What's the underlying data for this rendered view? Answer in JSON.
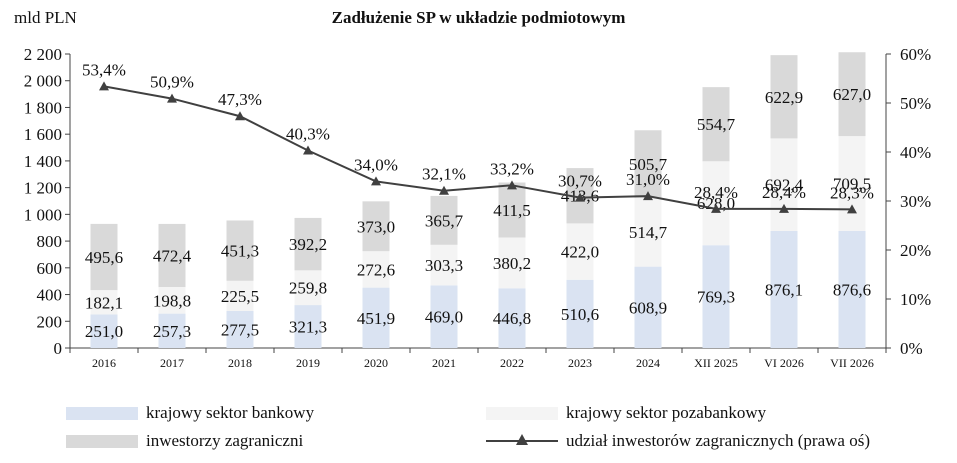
{
  "chart_data": {
    "type": "bar",
    "title": "Zadłużenie SP w układzie podmiotowym",
    "ylabel": "mld PLN",
    "categories": [
      "2016",
      "2017",
      "2018",
      "2019",
      "2020",
      "2021",
      "2022",
      "2023",
      "2024",
      "XII 2025",
      "VI 2026",
      "VII 2026"
    ],
    "ylim": [
      0,
      2200
    ],
    "y_ticks": [
      "0",
      "200",
      "400",
      "600",
      "800",
      "1 000",
      "1 200",
      "1 400",
      "1 600",
      "1 800",
      "2 000",
      "2 200"
    ],
    "y2lim": [
      0,
      60
    ],
    "y2_ticks": [
      "0%",
      "10%",
      "20%",
      "30%",
      "40%",
      "50%",
      "60%"
    ],
    "stacked": true,
    "series": [
      {
        "name": "krajowy sektor bankowy",
        "color": "#dae3f2",
        "values": [
          251.0,
          257.3,
          277.5,
          321.3,
          451.9,
          469.0,
          446.8,
          510.6,
          608.9,
          769.3,
          876.1,
          876.6
        ],
        "labels": [
          "251,0",
          "257,3",
          "277,5",
          "321,3",
          "451,9",
          "469,0",
          "446,8",
          "510,6",
          "608,9",
          "769,3",
          "876,1",
          "876,6"
        ]
      },
      {
        "name": "krajowy sektor pozabankowy",
        "color": "#f4f4f4",
        "values": [
          182.1,
          198.8,
          225.5,
          259.8,
          272.6,
          303.3,
          380.2,
          422.0,
          514.7,
          628.0,
          692.4,
          709.5
        ],
        "labels": [
          "182,1",
          "198,8",
          "225,5",
          "259,8",
          "272,6",
          "303,3",
          "380,2",
          "422,0",
          "514,7",
          "628,0",
          "692,4",
          "709,5"
        ]
      },
      {
        "name": "inwestorzy zagraniczni",
        "color": "#d9d9d9",
        "values": [
          495.6,
          472.4,
          451.3,
          392.2,
          373.0,
          365.7,
          411.5,
          413.6,
          505.7,
          554.7,
          622.9,
          627.0
        ],
        "labels": [
          "495,6",
          "472,4",
          "451,3",
          "392,2",
          "373,0",
          "365,7",
          "411,5",
          "413,6",
          "505,7",
          "554,7",
          "622,9",
          "627,0"
        ]
      },
      {
        "name": "udział inwestorów zagranicznych (prawa oś)",
        "color": "#404040",
        "axis": "right",
        "kind": "line",
        "values": [
          53.4,
          50.9,
          47.3,
          40.3,
          34.0,
          32.1,
          33.2,
          30.7,
          31.0,
          28.4,
          28.4,
          28.3
        ],
        "labels": [
          "53,4%",
          "50,9%",
          "47,3%",
          "40,3%",
          "34,0%",
          "32,1%",
          "33,2%",
          "30,7%",
          "31,0%",
          "28,4%",
          "28,4%",
          "28,3%"
        ]
      }
    ],
    "legend_position": "bottom",
    "grid": false
  }
}
